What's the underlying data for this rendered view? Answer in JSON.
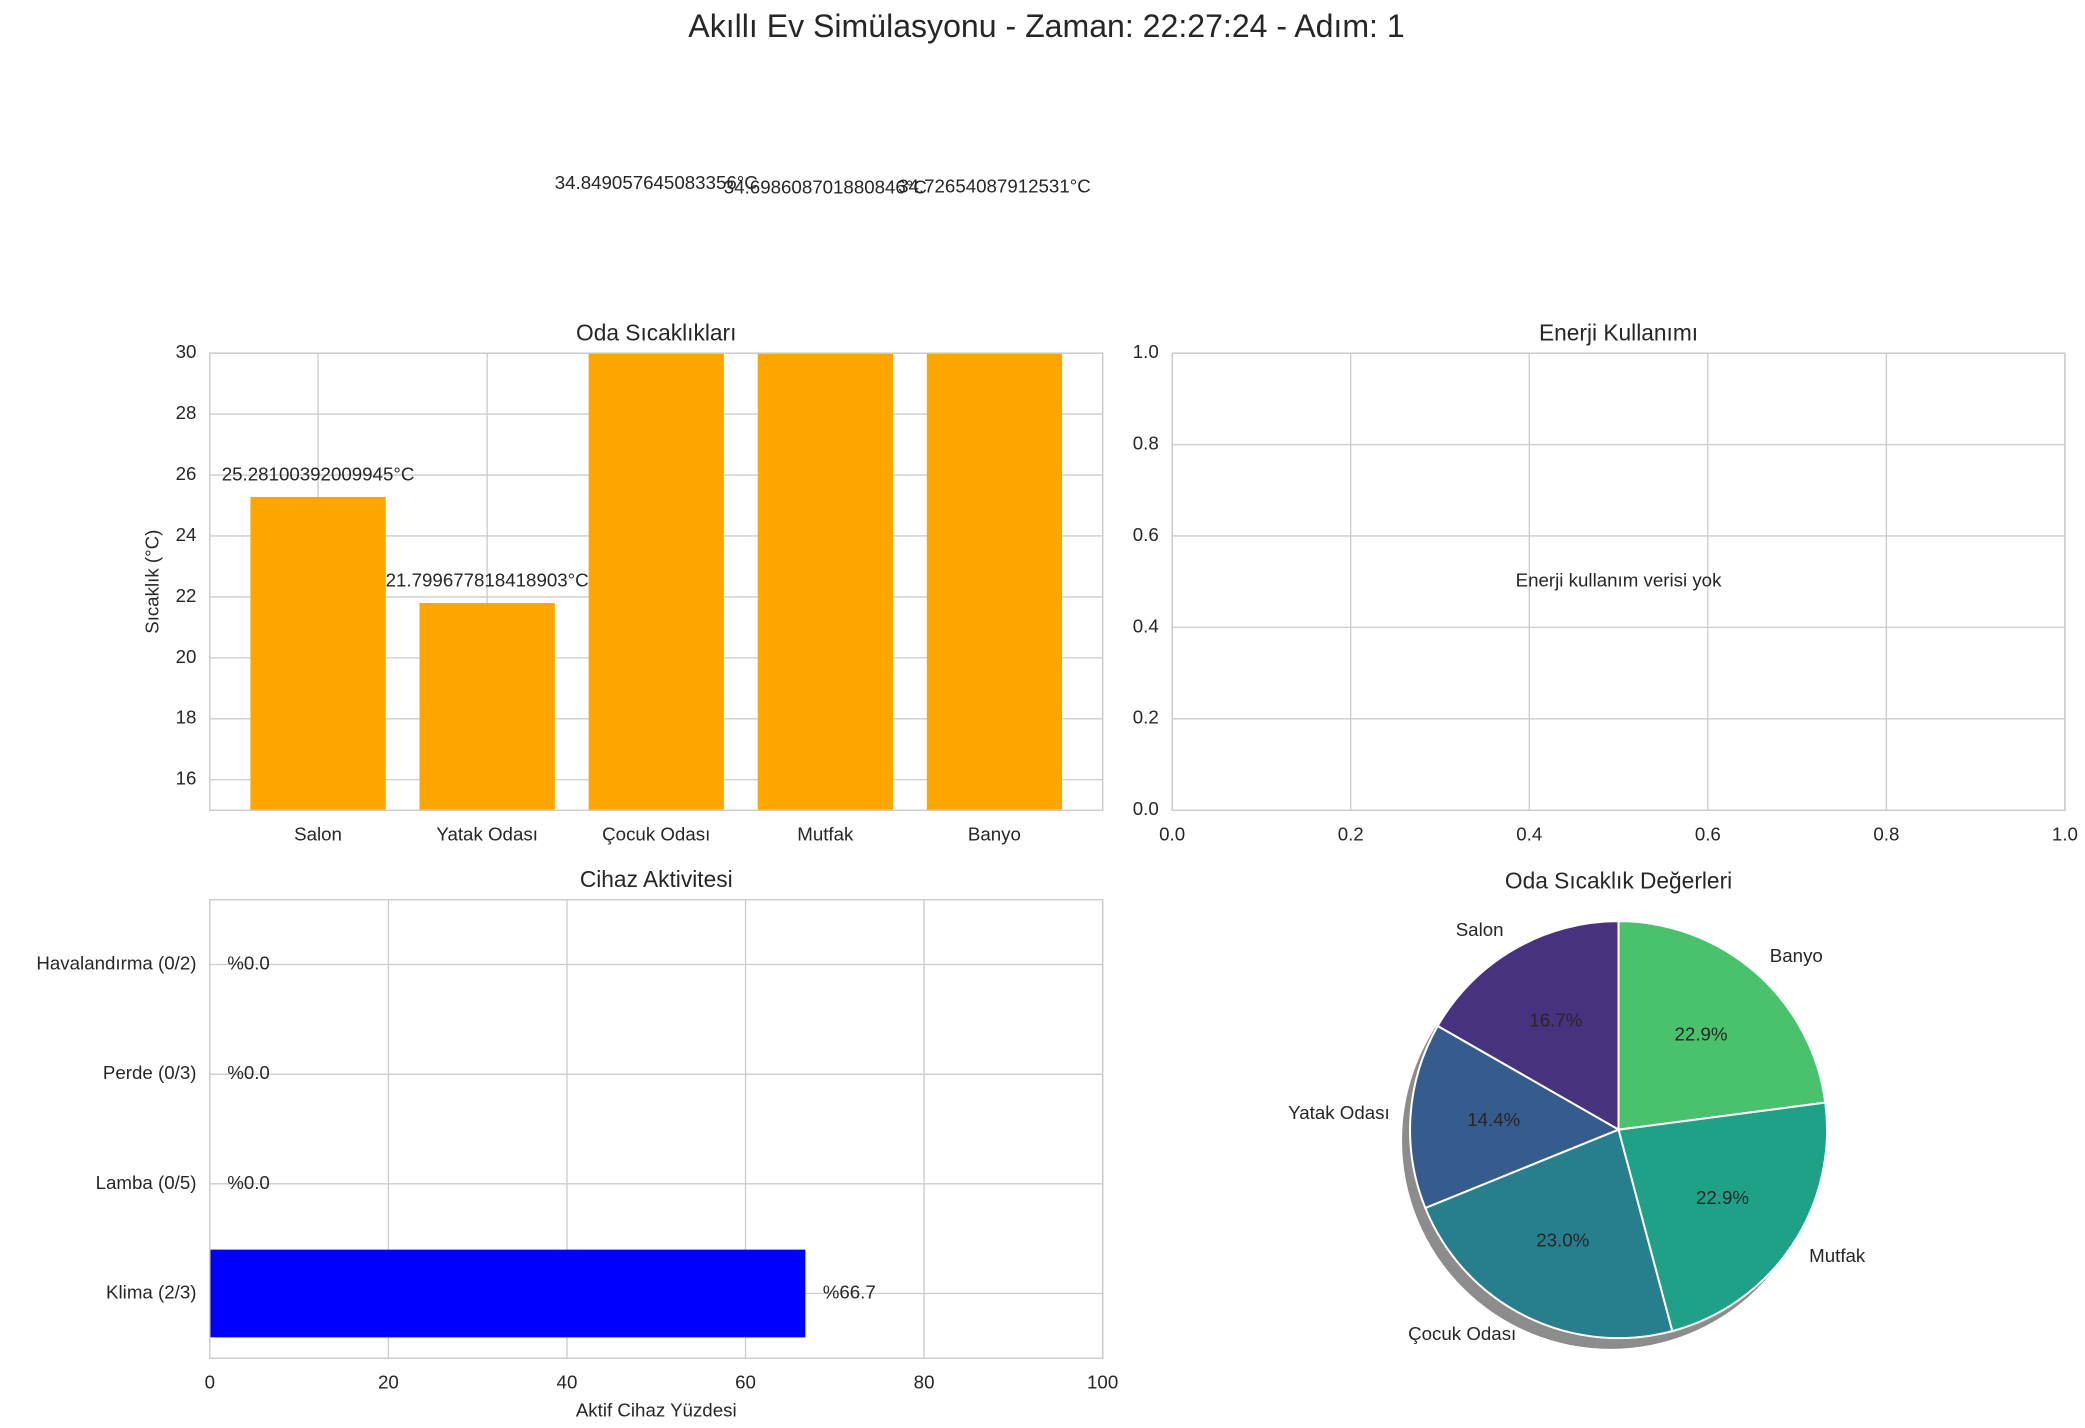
{
  "title": "Akıllı Ev Simülasyonu - Zaman: 22:27:24 - Adım: 1",
  "chart_data": [
    {
      "type": "bar",
      "title": "Oda Sıcaklıkları",
      "ylabel": "Sıcaklık (°C)",
      "categories": [
        "Salon",
        "Yatak Odası",
        "Çocuk Odası",
        "Mutfak",
        "Banyo"
      ],
      "values": [
        25.28100392009945,
        21.799677818418903,
        34.849057645083356,
        34.69860870188084,
        34.72654087912531
      ],
      "value_labels": [
        "25.28100392009945°C",
        "21.799677818418903°C",
        "34.849057645083356°C",
        "34.698608701880846°C",
        "34.72654087912531°C"
      ],
      "color": "#ffa500",
      "ylim": [
        15,
        30
      ],
      "yticks": [
        16,
        18,
        20,
        22,
        24,
        26,
        28,
        30
      ],
      "grid": true
    },
    {
      "type": "line",
      "title": "Enerji Kullanımı",
      "annotation": "Enerji kullanım verisi yok",
      "xlim": [
        0,
        1
      ],
      "ylim": [
        0,
        1
      ],
      "xticks": [
        {
          "value": 0,
          "label": "0.0"
        },
        {
          "value": 0.2,
          "label": "0.2"
        },
        {
          "value": 0.4,
          "label": "0.4"
        },
        {
          "value": 0.6,
          "label": "0.6"
        },
        {
          "value": 0.8,
          "label": "0.8"
        },
        {
          "value": 1,
          "label": "1.0"
        }
      ],
      "yticks": [
        {
          "value": 0,
          "label": "0.0"
        },
        {
          "value": 0.2,
          "label": "0.2"
        },
        {
          "value": 0.4,
          "label": "0.4"
        },
        {
          "value": 0.6,
          "label": "0.6"
        },
        {
          "value": 0.8,
          "label": "0.8"
        },
        {
          "value": 1,
          "label": "1.0"
        }
      ],
      "grid": true
    },
    {
      "type": "barh",
      "title": "Cihaz Aktivitesi",
      "xlabel": "Aktif Cihaz Yüzdesi",
      "categories": [
        "Klima (2/3)",
        "Lamba (0/5)",
        "Perde (0/3)",
        "Havalandırma (0/2)"
      ],
      "values": [
        66.7,
        0.0,
        0.0,
        0.0
      ],
      "value_labels": [
        "%66.7",
        "%0.0",
        "%0.0",
        "%0.0"
      ],
      "color": "#0000ff",
      "xlim": [
        0,
        100
      ],
      "xticks": [
        0,
        20,
        40,
        60,
        80,
        100
      ],
      "grid": true
    },
    {
      "type": "pie",
      "title": "Oda Sıcaklık Değerleri",
      "categories": [
        "Salon",
        "Yatak Odası",
        "Çocuk Odası",
        "Mutfak",
        "Banyo"
      ],
      "values": [
        16.7,
        14.4,
        23.0,
        22.9,
        22.9
      ],
      "value_labels": [
        "16.7%",
        "14.4%",
        "23.0%",
        "22.9%",
        "22.9%"
      ],
      "colors": [
        "#46327e",
        "#365c8d",
        "#277f8e",
        "#1fa187",
        "#4ac16d"
      ],
      "shadow": true
    }
  ]
}
